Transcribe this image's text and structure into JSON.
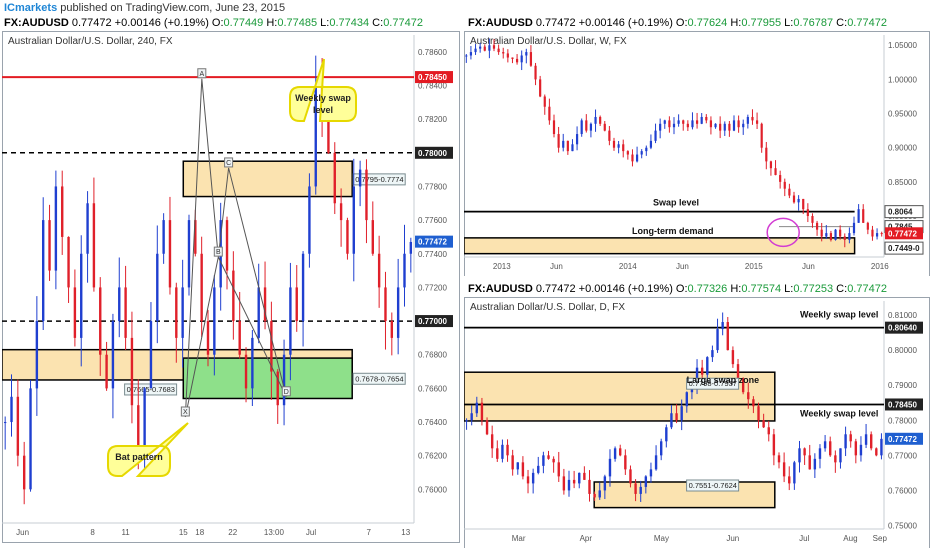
{
  "header": {
    "brand": "ICmarkets",
    "published": "published on TradingView.com, June 23, 2015"
  },
  "colors": {
    "bull": "#1f3fd0",
    "bear": "#e0202a",
    "zone_fill": "#fbe3b0",
    "green_zone": "#8ee08a",
    "red_line": "#e31b23",
    "callout_fill": "#ffff99",
    "callout_border": "#e6d800",
    "axis_label_red": "#e31b23",
    "axis_label_blue": "#1f5fd0"
  },
  "quotes": [
    {
      "symbol": "FX:AUDUSD",
      "last": "0.77472",
      "change": "+0.00146 (+0.19%)",
      "o": "0.77449",
      "h": "0.77485",
      "l": "0.77434",
      "c": "0.77472"
    },
    {
      "symbol": "FX:AUDUSD",
      "last": "0.77472",
      "change": "+0.00146 (+0.19%)",
      "o": "0.77624",
      "h": "0.77955",
      "l": "0.76787",
      "c": "0.77472"
    },
    {
      "symbol": "FX:AUDUSD",
      "last": "0.77472",
      "change": "+0.00146 (+0.19%)",
      "o": "0.77326",
      "h": "0.77574",
      "l": "0.77253",
      "c": "0.77472"
    }
  ],
  "chart_data": [
    {
      "id": "h4",
      "type": "candlestick",
      "title": "Australian Dollar/U.S. Dollar, 240, FX",
      "ylim": [
        0.758,
        0.787
      ],
      "y_ticks": [
        "0.78600",
        "0.78400",
        "0.78200",
        "0.78000",
        "0.77800",
        "0.77600",
        "0.77400",
        "0.77200",
        "0.77000",
        "0.76800",
        "0.76600",
        "0.76400",
        "0.76200",
        "0.76000"
      ],
      "x_ticks": [
        "Jun",
        "8",
        "11",
        "15",
        "18",
        "22",
        "13:00",
        "Jul",
        "7",
        "13"
      ],
      "price_labels": [
        {
          "text": "0.78450",
          "value": 0.7845,
          "style": "red"
        },
        {
          "text": "0.78000",
          "value": 0.78,
          "style": "dark"
        },
        {
          "text": "0.77472",
          "value": 0.77472,
          "style": "blue"
        },
        {
          "text": "0.77000",
          "value": 0.77,
          "style": "dark"
        }
      ],
      "levels": [
        {
          "value": 0.7845,
          "style": "red-solid"
        },
        {
          "value": 0.78,
          "style": "black-dashed"
        },
        {
          "value": 0.77,
          "style": "black-dashed"
        }
      ],
      "zones": [
        {
          "label": "0.7795-0.7774",
          "from": 0.7774,
          "to": 0.7795,
          "x_from": 0.44,
          "x_to": 0.85,
          "kind": "supply"
        },
        {
          "label": "0.7665-0.7683",
          "from": 0.7665,
          "to": 0.7683,
          "x_from": 0.0,
          "x_to": 0.44,
          "kind": "demand"
        },
        {
          "label": "0.7678-0.7654",
          "from": 0.7654,
          "to": 0.7678,
          "x_from": 0.44,
          "x_to": 0.85,
          "kind": "green"
        }
      ],
      "pattern_points": [
        {
          "label": "A",
          "x": 0.485,
          "value": 0.7844
        },
        {
          "label": "B",
          "x": 0.525,
          "value": 0.7738
        },
        {
          "label": "C",
          "x": 0.55,
          "value": 0.7791
        },
        {
          "label": "D",
          "x": 0.69,
          "value": 0.7655
        },
        {
          "label": "X",
          "x": 0.445,
          "value": 0.7643
        }
      ],
      "annotations": [
        "Weekly swap level",
        "Bat pattern"
      ],
      "closes": [
        0.764,
        0.7655,
        0.762,
        0.76,
        0.766,
        0.77,
        0.776,
        0.773,
        0.778,
        0.775,
        0.772,
        0.769,
        0.774,
        0.777,
        0.772,
        0.768,
        0.766,
        0.77,
        0.772,
        0.769,
        0.765,
        0.762,
        0.766,
        0.77,
        0.774,
        0.776,
        0.772,
        0.769,
        0.772,
        0.776,
        0.774,
        0.77,
        0.768,
        0.772,
        0.776,
        0.773,
        0.77,
        0.768,
        0.766,
        0.769,
        0.772,
        0.77,
        0.767,
        0.765,
        0.768,
        0.772,
        0.77,
        0.774,
        0.778,
        0.784,
        0.782,
        0.78,
        0.777,
        0.776,
        0.774,
        0.778,
        0.779,
        0.776,
        0.774,
        0.772,
        0.77,
        0.769,
        0.772,
        0.774,
        0.7747
      ]
    },
    {
      "id": "w",
      "type": "candlestick",
      "title": "Australian Dollar/U.S. Dollar, W, FX",
      "ylim": [
        0.74,
        1.065
      ],
      "y_ticks": [
        "1.05000",
        "1.00000",
        "0.95000",
        "0.90000",
        "0.85000",
        "0.80000",
        "0.75000"
      ],
      "x_ticks": [
        "2013",
        "Jun",
        "2014",
        "Jun",
        "2015",
        "Jun",
        "2016"
      ],
      "price_labels": [
        {
          "text": "0.8064",
          "value": 0.8064,
          "style": "box"
        },
        {
          "text": "0.7845",
          "value": 0.7845,
          "style": "box"
        },
        {
          "text": "0.77472",
          "value": 0.77472,
          "style": "red"
        },
        {
          "text": "0.7449-0",
          "value": 0.753,
          "style": "box"
        }
      ],
      "levels": [
        {
          "value": 0.8064,
          "style": "black-solid"
        }
      ],
      "zones": [
        {
          "label": "Long-term demand",
          "from": 0.7449,
          "to": 0.768,
          "kind": "demand"
        }
      ],
      "annotations": [
        "Swap level",
        "Long-term demand"
      ],
      "closes": [
        1.035,
        1.04,
        1.045,
        1.048,
        1.042,
        1.05,
        1.045,
        1.04,
        1.038,
        1.032,
        1.03,
        1.025,
        1.035,
        1.04,
        1.02,
        1.0,
        0.975,
        0.96,
        0.94,
        0.92,
        0.9,
        0.91,
        0.895,
        0.905,
        0.92,
        0.94,
        0.925,
        0.935,
        0.945,
        0.935,
        0.925,
        0.91,
        0.9,
        0.905,
        0.895,
        0.89,
        0.88,
        0.89,
        0.895,
        0.9,
        0.91,
        0.925,
        0.935,
        0.94,
        0.93,
        0.935,
        0.94,
        0.935,
        0.93,
        0.94,
        0.935,
        0.945,
        0.94,
        0.93,
        0.935,
        0.925,
        0.935,
        0.925,
        0.94,
        0.93,
        0.935,
        0.945,
        0.94,
        0.935,
        0.9,
        0.88,
        0.87,
        0.86,
        0.85,
        0.84,
        0.83,
        0.82,
        0.825,
        0.81,
        0.8,
        0.79,
        0.78,
        0.77,
        0.775,
        0.765,
        0.78,
        0.77,
        0.765,
        0.775,
        0.79,
        0.81,
        0.79,
        0.78,
        0.77,
        0.775,
        0.774
      ]
    },
    {
      "id": "d",
      "type": "candlestick",
      "title": "Australian Dollar/U.S. Dollar, D, FX",
      "ylim": [
        0.749,
        0.814
      ],
      "y_ticks": [
        "0.81000",
        "0.80640",
        "0.80000",
        "0.79000",
        "0.78450",
        "0.78000",
        "0.77472",
        "0.77000",
        "0.76000",
        "0.75000"
      ],
      "x_ticks": [
        "Mar",
        "Apr",
        "May",
        "Jun",
        "Jul",
        "Aug",
        "Sep"
      ],
      "price_labels": [
        {
          "text": "0.80640",
          "value": 0.8064,
          "style": "dark"
        },
        {
          "text": "0.78450",
          "value": 0.7845,
          "style": "dark"
        },
        {
          "text": "0.77472",
          "value": 0.77472,
          "style": "blue"
        }
      ],
      "levels": [
        {
          "value": 0.8064,
          "style": "black-solid"
        },
        {
          "value": 0.7845,
          "style": "black-solid"
        }
      ],
      "zones": [
        {
          "label": "0.7798-0.7937",
          "from": 0.7798,
          "to": 0.7937,
          "kind": "supply"
        },
        {
          "label": "0.7551-0.7624",
          "from": 0.7551,
          "to": 0.7624,
          "kind": "demand"
        }
      ],
      "annotations": [
        "Weekly swap level",
        "Large swap zone",
        "Weekly swap level"
      ],
      "closes": [
        0.78,
        0.782,
        0.785,
        0.78,
        0.776,
        0.772,
        0.769,
        0.773,
        0.77,
        0.766,
        0.768,
        0.764,
        0.762,
        0.765,
        0.767,
        0.77,
        0.769,
        0.768,
        0.764,
        0.76,
        0.763,
        0.762,
        0.765,
        0.763,
        0.759,
        0.758,
        0.76,
        0.764,
        0.769,
        0.772,
        0.77,
        0.766,
        0.762,
        0.759,
        0.761,
        0.764,
        0.766,
        0.77,
        0.774,
        0.778,
        0.782,
        0.78,
        0.784,
        0.788,
        0.79,
        0.795,
        0.793,
        0.798,
        0.8,
        0.806,
        0.808,
        0.8,
        0.796,
        0.792,
        0.788,
        0.786,
        0.784,
        0.78,
        0.778,
        0.776,
        0.77,
        0.768,
        0.764,
        0.762,
        0.768,
        0.772,
        0.77,
        0.766,
        0.769,
        0.772,
        0.774,
        0.77,
        0.768,
        0.772,
        0.776,
        0.774,
        0.77,
        0.773,
        0.776,
        0.772,
        0.77,
        0.7747
      ]
    }
  ]
}
